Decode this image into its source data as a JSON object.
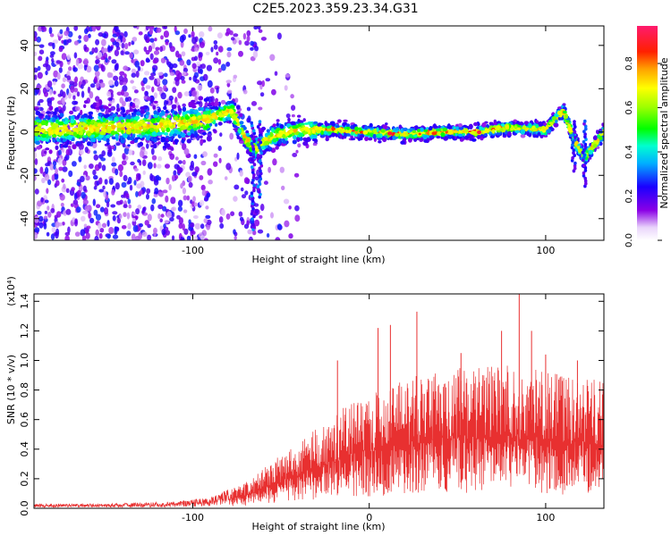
{
  "title": "C2E5.2023.359.23.34.G31",
  "chart_data": [
    {
      "type": "heatmap",
      "xlabel": "Height of straight line (km)",
      "ylabel": "Frequency (Hz)",
      "xlim": [
        -190,
        133
      ],
      "ylim": [
        -50,
        49
      ],
      "x_ticks": [
        -100,
        0,
        100
      ],
      "y_ticks": [
        -40,
        -20,
        0,
        20,
        40
      ],
      "colorbar": {
        "label": "Normalized spectral amplitude",
        "range": [
          0.0,
          0.97
        ],
        "ticks": [
          "0.0",
          "0.2",
          "0.4",
          "0.6",
          "0.8"
        ]
      },
      "ridge": [
        {
          "x": -190,
          "y": 1
        },
        {
          "x": -150,
          "y": 2
        },
        {
          "x": -120,
          "y": 3
        },
        {
          "x": -95,
          "y": 5
        },
        {
          "x": -78,
          "y": 10
        },
        {
          "x": -70,
          "y": -3
        },
        {
          "x": -65,
          "y": -8
        },
        {
          "x": -55,
          "y": -2
        },
        {
          "x": -40,
          "y": 1
        },
        {
          "x": -20,
          "y": 1
        },
        {
          "x": 0,
          "y": 0
        },
        {
          "x": 20,
          "y": -1
        },
        {
          "x": 40,
          "y": 0
        },
        {
          "x": 60,
          "y": 0
        },
        {
          "x": 80,
          "y": 2
        },
        {
          "x": 100,
          "y": 1
        },
        {
          "x": 110,
          "y": 10
        },
        {
          "x": 117,
          "y": -5
        },
        {
          "x": 122,
          "y": -12
        },
        {
          "x": 133,
          "y": 0
        }
      ]
    },
    {
      "type": "line",
      "xlabel": "Height of straight line (km)",
      "ylabel": "SNR (10 * v/v)",
      "y_multiplier": "(x10⁴)",
      "xlim": [
        -190,
        133
      ],
      "ylim": [
        0.0,
        1.45
      ],
      "x_ticks": [
        -100,
        0,
        100
      ],
      "y_ticks": [
        "0.0",
        "0.2",
        "0.4",
        "0.6",
        "0.8",
        "1.0",
        "1.2",
        "1.4"
      ],
      "series": [
        {
          "color": "#e83030",
          "envelope": [
            {
              "x": -190,
              "y": 0.02
            },
            {
              "x": -150,
              "y": 0.02
            },
            {
              "x": -110,
              "y": 0.03
            },
            {
              "x": -90,
              "y": 0.05
            },
            {
              "x": -70,
              "y": 0.12
            },
            {
              "x": -50,
              "y": 0.25
            },
            {
              "x": -30,
              "y": 0.38
            },
            {
              "x": -10,
              "y": 0.5
            },
            {
              "x": 10,
              "y": 0.58
            },
            {
              "x": 30,
              "y": 0.63
            },
            {
              "x": 50,
              "y": 0.66
            },
            {
              "x": 70,
              "y": 0.68
            },
            {
              "x": 90,
              "y": 0.66
            },
            {
              "x": 110,
              "y": 0.62
            },
            {
              "x": 133,
              "y": 0.6
            }
          ],
          "peaks": [
            {
              "x": -18,
              "y": 1.0
            },
            {
              "x": 5,
              "y": 1.22
            },
            {
              "x": 12,
              "y": 1.24
            },
            {
              "x": 27,
              "y": 1.33
            },
            {
              "x": 52,
              "y": 1.05
            },
            {
              "x": 75,
              "y": 1.2
            },
            {
              "x": 85,
              "y": 1.46
            },
            {
              "x": 92,
              "y": 1.2
            },
            {
              "x": 100,
              "y": 1.04
            },
            {
              "x": 118,
              "y": 1.0
            }
          ]
        }
      ]
    }
  ]
}
